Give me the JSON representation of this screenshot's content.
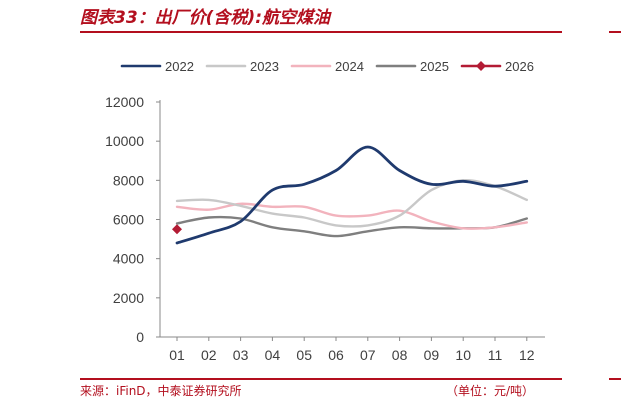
{
  "header": {
    "title": "图表33：出厂价(含税):航空煤油"
  },
  "footer": {
    "source": "来源：iFinD，中泰证券研究所",
    "unit": "（单位：元/吨）"
  },
  "chart_data": {
    "type": "line",
    "title": "图表33：出厂价(含税):航空煤油",
    "xlabel": "",
    "ylabel": "",
    "categories": [
      "01",
      "02",
      "03",
      "04",
      "05",
      "06",
      "07",
      "08",
      "09",
      "10",
      "11",
      "12"
    ],
    "ylim": [
      0,
      12000
    ],
    "yticks": [
      0,
      2000,
      4000,
      6000,
      8000,
      10000,
      12000
    ],
    "grid": false,
    "legend": "top",
    "series": [
      {
        "name": "2022",
        "color": "#1f3a6e",
        "values": [
          4800,
          5300,
          5900,
          7500,
          7800,
          8500,
          9700,
          8500,
          7800,
          7950,
          7700,
          7950
        ]
      },
      {
        "name": "2023",
        "color": "#c8c8c8",
        "values": [
          6950,
          7000,
          6700,
          6300,
          6100,
          5700,
          5700,
          6200,
          7500,
          8000,
          7700,
          7000
        ]
      },
      {
        "name": "2024",
        "color": "#f2b3bd",
        "values": [
          6650,
          6500,
          6800,
          6650,
          6650,
          6200,
          6200,
          6450,
          5900,
          5550,
          5600,
          5850
        ]
      },
      {
        "name": "2025",
        "color": "#7f7f7f",
        "values": [
          5800,
          6100,
          6050,
          5600,
          5400,
          5150,
          5400,
          5600,
          5550,
          5550,
          5600,
          6050
        ]
      },
      {
        "name": "2026",
        "color": "#b31b34",
        "marker": "diamond",
        "values": [
          5500,
          null,
          null,
          null,
          null,
          null,
          null,
          null,
          null,
          null,
          null,
          null
        ]
      }
    ]
  }
}
